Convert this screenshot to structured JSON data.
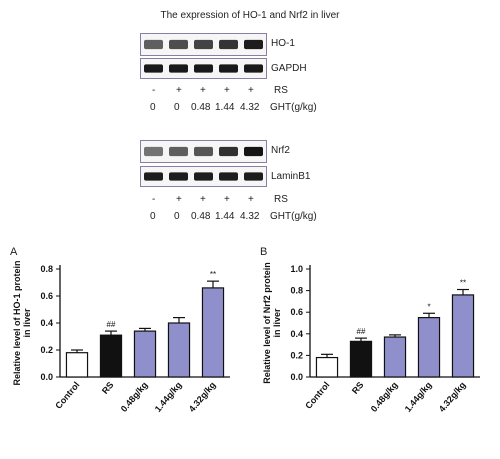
{
  "figure_title": "The expression of HO-1 and Nrf2 in liver",
  "blot_group_1": {
    "bands": [
      "HO-1",
      "GAPDH"
    ],
    "rs_row": {
      "marks": [
        "-",
        "+",
        "+",
        "+",
        "+"
      ],
      "label": "RS"
    },
    "ght_row": {
      "values": [
        "0",
        "0",
        "0.48",
        "1.44",
        "4.32"
      ],
      "label": "GHT(g/kg)"
    },
    "intensity_top": [
      0.55,
      0.65,
      0.7,
      0.78,
      0.9
    ]
  },
  "blot_group_2": {
    "bands": [
      "Nrf2",
      "LaminB1"
    ],
    "rs_row": {
      "marks": [
        "-",
        "+",
        "+",
        "+",
        "+"
      ],
      "label": "RS"
    },
    "ght_row": {
      "values": [
        "0",
        "0",
        "0.48",
        "1.44",
        "4.32"
      ],
      "label": "GHT(g/kg)"
    },
    "intensity_top": [
      0.45,
      0.55,
      0.6,
      0.8,
      0.95
    ]
  },
  "colors": {
    "control": "#ffffff",
    "rs": "#111111",
    "ght": "#8f8fcc",
    "axis": "#111111"
  },
  "chart_data": [
    {
      "type": "bar",
      "panel": "A",
      "categories": [
        "Control",
        "RS",
        "0.48g/kg",
        "1.44g/kg",
        "4.32g/kg"
      ],
      "values": [
        0.18,
        0.31,
        0.34,
        0.4,
        0.66
      ],
      "errors": [
        0.02,
        0.03,
        0.02,
        0.04,
        0.05
      ],
      "annotations": [
        "",
        "##",
        "",
        "",
        "**"
      ],
      "ylabel": "Relative level of HO-1 protein in liver",
      "ylim": [
        0,
        0.8
      ],
      "yticks": [
        "0.0",
        "0.2",
        "0.4",
        "0.6",
        "0.8"
      ],
      "grid": false
    },
    {
      "type": "bar",
      "panel": "B",
      "categories": [
        "Control",
        "RS",
        "0.48g/kg",
        "1.44g/kg",
        "4.32g/kg"
      ],
      "values": [
        0.18,
        0.33,
        0.37,
        0.55,
        0.76
      ],
      "errors": [
        0.03,
        0.03,
        0.02,
        0.04,
        0.05
      ],
      "annotations": [
        "",
        "##",
        "",
        "*",
        "**"
      ],
      "ylabel": "Relative level of Nrf2 protein in liver",
      "ylim": [
        0,
        1.0
      ],
      "yticks": [
        "0.0",
        "0.2",
        "0.4",
        "0.6",
        "0.8",
        "1.0"
      ],
      "grid": false
    }
  ]
}
